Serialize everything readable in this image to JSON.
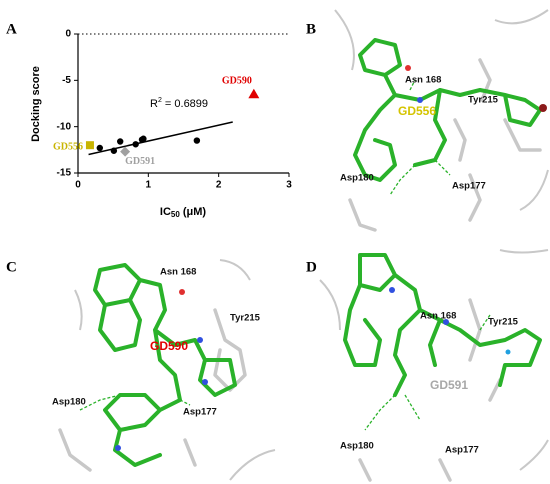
{
  "chart_data": {
    "type": "scatter",
    "panel_label": "A",
    "y_label": "Docking score",
    "x_label": [
      "IC",
      "50",
      " (μM)"
    ],
    "annotation": [
      "R",
      "2",
      " = 0.6899"
    ],
    "xlim": [
      0,
      3
    ],
    "xticks": [
      0,
      1,
      2,
      3
    ],
    "ylim": [
      -15,
      0
    ],
    "yticks": [
      -15,
      -10,
      -5,
      0
    ],
    "zero_line": true,
    "series": [
      {
        "color": "#000000",
        "marker": "circle",
        "x": [
          0.31,
          0.51,
          0.6,
          0.82,
          0.91,
          0.93,
          1.69
        ],
        "values": [
          -12.3,
          -12.6,
          -11.6,
          -11.9,
          -11.4,
          -11.3,
          -11.5
        ]
      },
      {
        "name": "GD556",
        "color": "#c8b400",
        "marker": "square",
        "x": [
          0.17
        ],
        "values": [
          -12.0
        ]
      },
      {
        "name": "GD590",
        "color": "#e00000",
        "marker": "triangle",
        "x": [
          2.5
        ],
        "values": [
          -6.5
        ]
      },
      {
        "name": "GD591",
        "color": "#a0a0a0",
        "marker": "diamond",
        "x": [
          0.67
        ],
        "values": [
          -12.7
        ]
      }
    ],
    "fit": {
      "color": "#000000",
      "x": [
        0.15,
        2.2
      ],
      "y": [
        -13.0,
        -9.5
      ]
    }
  },
  "panels": [
    {
      "label": "B",
      "residues": [
        "Asn 168",
        "Tyr215",
        "Asp180",
        "Asp177"
      ],
      "ligand": "GD556",
      "ligand_color": "#d4c400"
    },
    {
      "label": "C",
      "residues": [
        "Asn 168",
        "Tyr215",
        "Asp180",
        "Asp177"
      ],
      "ligand": "GD590",
      "ligand_color": "#e00000"
    },
    {
      "label": "D",
      "residues": [
        "Asn 168",
        "Tyr215",
        "Asp180",
        "Asp177"
      ],
      "ligand": "GD591",
      "ligand_color": "#a8a8a8"
    }
  ]
}
